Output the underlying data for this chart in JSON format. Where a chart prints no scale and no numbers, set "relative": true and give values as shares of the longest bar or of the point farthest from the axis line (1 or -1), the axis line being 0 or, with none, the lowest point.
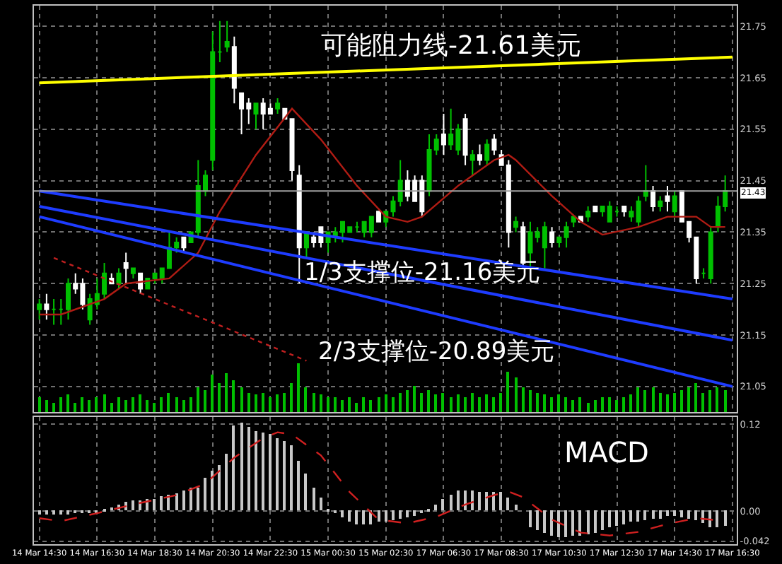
{
  "chart_data": [
    {
      "type": "candlestick",
      "categories": [
        "14 Mar 14:30",
        null,
        null,
        null,
        null,
        null,
        null,
        null,
        "14 Mar 16:30",
        null,
        null,
        null,
        null,
        null,
        null,
        null,
        "14 Mar 18:30",
        null,
        null,
        null,
        null,
        null,
        null,
        null,
        "14 Mar 20:30",
        null,
        null,
        null,
        null,
        null,
        null,
        null,
        "14 Mar 22:30",
        null,
        null,
        null,
        null,
        null,
        null,
        null,
        "15 Mar 00:30",
        null,
        null,
        null,
        null,
        null,
        null,
        null,
        "15 Mar 02:30",
        null,
        null,
        null,
        null,
        null,
        null,
        null,
        "17 Mar 06:30",
        null,
        null,
        null,
        null,
        null,
        null,
        null,
        "17 Mar 08:30",
        null,
        null,
        null,
        null,
        null,
        null,
        null,
        "17 Mar 10:30",
        null,
        null,
        null,
        null,
        null,
        null,
        null,
        "17 Mar 12:30",
        null,
        null,
        null,
        null,
        null,
        null,
        null,
        "17 Mar 14:30",
        null,
        null,
        null,
        null,
        null,
        null,
        null,
        "17 Mar 16:30"
      ],
      "ohlc": [
        [
          21.2,
          21.22,
          21.18,
          21.21
        ],
        [
          21.21,
          21.23,
          21.18,
          21.2
        ],
        [
          21.2,
          21.22,
          21.17,
          21.2
        ],
        [
          21.2,
          21.22,
          21.17,
          21.2
        ],
        [
          21.2,
          21.26,
          21.18,
          21.25
        ],
        [
          21.25,
          21.27,
          21.23,
          21.24
        ],
        [
          21.25,
          21.26,
          21.2,
          21.21
        ],
        [
          21.18,
          21.23,
          21.17,
          21.22
        ],
        [
          21.21,
          21.26,
          21.2,
          21.23
        ],
        [
          21.23,
          21.29,
          21.22,
          21.27
        ],
        [
          21.26,
          21.27,
          21.25,
          21.25
        ],
        [
          21.25,
          21.28,
          21.24,
          21.27
        ],
        [
          21.29,
          21.31,
          21.25,
          21.28
        ],
        [
          21.27,
          21.28,
          21.26,
          21.28
        ],
        [
          21.27,
          21.27,
          21.23,
          21.24
        ],
        [
          21.24,
          21.26,
          21.24,
          21.26
        ],
        [
          21.26,
          21.27,
          21.25,
          21.27
        ],
        [
          21.26,
          21.28,
          21.25,
          21.28
        ],
        [
          21.28,
          21.35,
          21.28,
          21.32
        ],
        [
          21.32,
          21.34,
          21.31,
          21.33
        ],
        [
          21.34,
          21.34,
          21.31,
          21.32
        ],
        [
          21.33,
          21.35,
          21.33,
          21.35
        ],
        [
          21.35,
          21.49,
          21.34,
          21.44
        ],
        [
          21.43,
          21.47,
          21.42,
          21.46
        ],
        [
          21.49,
          21.74,
          21.47,
          21.7
        ],
        [
          21.7,
          21.76,
          21.68,
          21.7
        ],
        [
          21.71,
          21.76,
          21.7,
          21.72
        ],
        [
          21.71,
          21.73,
          21.6,
          21.63
        ],
        [
          21.62,
          21.62,
          21.54,
          21.59
        ],
        [
          21.6,
          21.61,
          21.56,
          21.59
        ],
        [
          21.58,
          21.6,
          21.55,
          21.6
        ],
        [
          21.6,
          21.61,
          21.55,
          21.58
        ],
        [
          21.59,
          21.6,
          21.58,
          21.58
        ],
        [
          21.59,
          21.61,
          21.58,
          21.6
        ],
        [
          21.59,
          21.59,
          21.57,
          21.57
        ],
        [
          21.57,
          21.57,
          21.45,
          21.47
        ],
        [
          21.46,
          21.48,
          21.25,
          21.32
        ],
        [
          21.32,
          21.35,
          21.3,
          21.35
        ],
        [
          21.34,
          21.35,
          21.32,
          21.33
        ],
        [
          21.36,
          21.36,
          21.32,
          21.33
        ],
        [
          21.33,
          21.35,
          21.31,
          21.35
        ],
        [
          21.34,
          21.36,
          21.33,
          21.35
        ],
        [
          21.35,
          21.37,
          21.33,
          21.37
        ],
        [
          21.35,
          21.36,
          21.35,
          21.36
        ],
        [
          21.36,
          21.37,
          21.35,
          21.36
        ],
        [
          21.35,
          21.37,
          21.34,
          21.37
        ],
        [
          21.35,
          21.38,
          21.34,
          21.38
        ],
        [
          21.39,
          21.39,
          21.37,
          21.37
        ],
        [
          21.37,
          21.39,
          21.36,
          21.39
        ],
        [
          21.39,
          21.42,
          21.38,
          21.41
        ],
        [
          21.41,
          21.49,
          21.4,
          21.45
        ],
        [
          21.45,
          21.47,
          21.41,
          21.42
        ],
        [
          21.45,
          21.46,
          21.41,
          21.41
        ],
        [
          21.45,
          21.46,
          21.38,
          21.39
        ],
        [
          21.43,
          21.54,
          21.42,
          21.51
        ],
        [
          21.51,
          21.54,
          21.5,
          21.53
        ],
        [
          21.54,
          21.58,
          21.5,
          21.52
        ],
        [
          21.52,
          21.59,
          21.51,
          21.54
        ],
        [
          21.51,
          21.56,
          21.5,
          21.55
        ],
        [
          21.57,
          21.58,
          21.48,
          21.5
        ],
        [
          21.49,
          21.51,
          21.46,
          21.5
        ],
        [
          21.5,
          21.52,
          21.48,
          21.49
        ],
        [
          21.49,
          21.53,
          21.48,
          21.52
        ],
        [
          21.53,
          21.54,
          21.5,
          21.51
        ],
        [
          21.5,
          21.51,
          21.48,
          21.48
        ],
        [
          21.48,
          21.49,
          21.32,
          21.35
        ],
        [
          21.36,
          21.38,
          21.35,
          21.37
        ],
        [
          21.36,
          21.37,
          21.28,
          21.29
        ],
        [
          21.31,
          21.37,
          21.28,
          21.35
        ],
        [
          21.34,
          21.36,
          21.33,
          21.35
        ],
        [
          21.32,
          21.37,
          21.28,
          21.36
        ],
        [
          21.35,
          21.36,
          21.32,
          21.33
        ],
        [
          21.33,
          21.34,
          21.32,
          21.34
        ],
        [
          21.34,
          21.37,
          21.32,
          21.36
        ],
        [
          21.37,
          21.38,
          21.36,
          21.38
        ],
        [
          21.38,
          21.38,
          21.37,
          21.37
        ],
        [
          21.38,
          21.4,
          21.37,
          21.39
        ],
        [
          21.4,
          21.4,
          21.39,
          21.39
        ],
        [
          21.39,
          21.4,
          21.38,
          21.4
        ],
        [
          21.37,
          21.41,
          21.37,
          21.4
        ],
        [
          21.39,
          21.4,
          21.38,
          21.39
        ],
        [
          21.4,
          21.4,
          21.38,
          21.39
        ],
        [
          21.38,
          21.4,
          21.37,
          21.39
        ],
        [
          21.37,
          21.42,
          21.36,
          21.41
        ],
        [
          21.42,
          21.48,
          21.41,
          21.43
        ],
        [
          21.43,
          21.44,
          21.39,
          21.4
        ],
        [
          21.4,
          21.42,
          21.39,
          21.41
        ],
        [
          21.42,
          21.44,
          21.39,
          21.41
        ],
        [
          21.39,
          21.43,
          21.38,
          21.42
        ],
        [
          21.43,
          21.43,
          21.37,
          21.37
        ],
        [
          21.37,
          21.37,
          21.33,
          21.34
        ],
        [
          21.34,
          21.34,
          21.25,
          21.26
        ],
        [
          21.27,
          21.28,
          21.26,
          21.27
        ],
        [
          21.26,
          21.36,
          21.25,
          21.35
        ],
        [
          21.36,
          21.42,
          21.35,
          21.4
        ],
        [
          21.4,
          21.46,
          21.39,
          21.43
        ],
        null
      ],
      "colors": [
        "#00c000",
        "#ffffff",
        "#00c000",
        "#00c000",
        "#00c000",
        "#ffffff",
        "#ffffff",
        "#00c000",
        "#00c000",
        "#00c000",
        "#ffffff",
        "#00c000",
        "#ffffff",
        "#00c000",
        "#ffffff",
        "#00c000",
        "#00c000",
        "#00c000",
        "#00c000",
        "#00c000",
        "#ffffff",
        "#00c000",
        "#00c000",
        "#00c000",
        "#00c000",
        "#00c000",
        "#00c000",
        "#ffffff",
        "#ffffff",
        "#ffffff",
        "#00c000",
        "#ffffff",
        "#ffffff",
        "#00c000",
        "#ffffff",
        "#ffffff",
        "#ffffff",
        "#00c000",
        "#ffffff",
        "#ffffff",
        "#00c000",
        "#00c000",
        "#00c000",
        "#00c000",
        "#00c000",
        "#00c000",
        "#00c000",
        "#ffffff",
        "#00c000",
        "#00c000",
        "#00c000",
        "#ffffff",
        "#ffffff",
        "#ffffff",
        "#00c000",
        "#00c000",
        "#ffffff",
        "#00c000",
        "#00c000",
        "#ffffff",
        "#00c000",
        "#ffffff",
        "#00c000",
        "#ffffff",
        "#ffffff",
        "#ffffff",
        "#00c000",
        "#ffffff",
        "#00c000",
        "#00c000",
        "#00c000",
        "#ffffff",
        "#00c000",
        "#00c000",
        "#00c000",
        "#ffffff",
        "#00c000",
        "#ffffff",
        "#00c000",
        "#00c000",
        "#00c000",
        "#ffffff",
        "#00c000",
        "#00c000",
        "#00c000",
        "#ffffff",
        "#00c000",
        "#ffffff",
        "#00c000",
        "#ffffff",
        "#ffffff",
        "#ffffff",
        "#00c000",
        "#00c000",
        "#00c000",
        "#00c000",
        null
      ],
      "series": [
        {
          "type": "line",
          "color": "#b01c14",
          "values": [
            21.19,
            null,
            null,
            21.19,
            null,
            null,
            null,
            null,
            null,
            21.22,
            null,
            null,
            21.25,
            null,
            null,
            null,
            null,
            null,
            21.26,
            null,
            null,
            null,
            21.31,
            null,
            null,
            21.39,
            null,
            null,
            null,
            null,
            21.5,
            null,
            null,
            null,
            null,
            21.59,
            null,
            null,
            null,
            21.53,
            null,
            null,
            null,
            null,
            21.44,
            null,
            null,
            null,
            21.38,
            null,
            null,
            21.37,
            null,
            21.38,
            null,
            null,
            null,
            null,
            21.44,
            null,
            null,
            null,
            null,
            21.49,
            null,
            21.5,
            21.49,
            null,
            null,
            null,
            null,
            21.42,
            null,
            null,
            null,
            21.37,
            null,
            null,
            21.345,
            null,
            null,
            null,
            null,
            21.36,
            null,
            null,
            null,
            21.38,
            null,
            null,
            null,
            21.38,
            null,
            21.36,
            null,
            21.36,
            null
          ]
        },
        {
          "type": "line",
          "color": "#ffff00",
          "values": [
            21.64,
            null,
            null,
            null,
            null,
            null,
            null,
            null,
            null,
            null,
            null,
            null,
            null,
            null,
            null,
            null,
            null,
            null,
            null,
            null,
            null,
            null,
            null,
            null,
            null,
            null,
            null,
            null,
            null,
            null,
            null,
            null,
            null,
            null,
            null,
            null,
            null,
            null,
            null,
            null,
            null,
            null,
            null,
            null,
            null,
            null,
            null,
            null,
            null,
            null,
            null,
            null,
            null,
            null,
            null,
            null,
            null,
            null,
            null,
            null,
            null,
            null,
            null,
            null,
            null,
            null,
            null,
            null,
            null,
            null,
            null,
            null,
            null,
            null,
            null,
            null,
            null,
            null,
            null,
            null,
            null,
            null,
            null,
            null,
            null,
            null,
            null,
            null,
            null,
            null,
            null,
            null,
            null,
            null,
            null,
            null,
            21.69
          ]
        },
        {
          "type": "line",
          "color": "#1e3cff",
          "values": [
            21.43,
            null,
            null,
            null,
            null,
            null,
            null,
            null,
            null,
            null,
            null,
            null,
            null,
            null,
            null,
            null,
            null,
            null,
            null,
            null,
            null,
            null,
            null,
            null,
            null,
            null,
            null,
            null,
            null,
            null,
            null,
            null,
            null,
            null,
            null,
            null,
            null,
            null,
            null,
            null,
            null,
            null,
            null,
            null,
            null,
            null,
            null,
            null,
            null,
            null,
            null,
            null,
            null,
            null,
            null,
            null,
            null,
            null,
            null,
            null,
            null,
            null,
            null,
            null,
            null,
            null,
            null,
            null,
            null,
            null,
            null,
            null,
            null,
            null,
            null,
            null,
            null,
            null,
            null,
            null,
            null,
            null,
            null,
            null,
            null,
            null,
            null,
            null,
            null,
            null,
            null,
            null,
            null,
            null,
            null,
            null,
            21.22
          ]
        },
        {
          "type": "line",
          "color": "#1e3cff",
          "values": [
            21.4,
            null,
            null,
            null,
            null,
            null,
            null,
            null,
            null,
            null,
            null,
            null,
            null,
            null,
            null,
            null,
            null,
            null,
            null,
            null,
            null,
            null,
            null,
            null,
            null,
            null,
            null,
            null,
            null,
            null,
            null,
            null,
            null,
            null,
            null,
            null,
            null,
            null,
            null,
            null,
            null,
            null,
            null,
            null,
            null,
            null,
            null,
            null,
            null,
            null,
            null,
            null,
            null,
            null,
            null,
            null,
            null,
            null,
            null,
            null,
            null,
            null,
            null,
            null,
            null,
            null,
            null,
            null,
            null,
            null,
            null,
            null,
            null,
            null,
            null,
            null,
            null,
            null,
            null,
            null,
            null,
            null,
            null,
            null,
            null,
            null,
            null,
            null,
            null,
            null,
            null,
            null,
            null,
            null,
            null,
            null,
            21.14
          ]
        },
        {
          "type": "line",
          "color": "#1e3cff",
          "values": [
            21.38,
            null,
            null,
            null,
            null,
            null,
            null,
            null,
            null,
            null,
            null,
            null,
            null,
            null,
            null,
            null,
            null,
            null,
            null,
            null,
            null,
            null,
            null,
            null,
            null,
            null,
            null,
            null,
            null,
            null,
            null,
            null,
            null,
            null,
            null,
            null,
            null,
            null,
            null,
            null,
            null,
            null,
            null,
            null,
            null,
            null,
            null,
            null,
            null,
            null,
            null,
            null,
            null,
            null,
            null,
            null,
            null,
            null,
            null,
            null,
            null,
            null,
            null,
            null,
            null,
            null,
            null,
            null,
            null,
            null,
            null,
            null,
            null,
            null,
            null,
            null,
            null,
            null,
            null,
            null,
            null,
            null,
            null,
            null,
            null,
            null,
            null,
            null,
            null,
            null,
            null,
            null,
            null,
            null,
            null,
            null,
            21.05
          ]
        },
        {
          "type": "line",
          "color": "#c02020",
          "line_style": "dotted",
          "values": [
            null,
            null,
            21.3,
            null,
            null,
            null,
            null,
            null,
            null,
            null,
            null,
            null,
            null,
            null,
            null,
            null,
            null,
            null,
            null,
            null,
            null,
            null,
            null,
            null,
            null,
            null,
            null,
            null,
            null,
            null,
            null,
            null,
            null,
            null,
            null,
            null,
            null,
            21.1,
            null,
            null,
            null,
            null,
            null,
            null,
            null,
            null,
            null,
            null,
            null,
            null,
            null,
            null,
            null,
            null,
            null,
            null,
            null,
            null,
            null,
            null,
            null,
            null,
            null,
            null,
            null,
            null,
            null,
            null,
            null,
            null,
            null,
            null,
            null,
            null,
            null,
            null,
            null,
            null,
            null,
            null,
            null,
            null,
            null,
            null,
            null,
            null,
            null,
            null,
            null,
            null,
            null,
            null,
            null,
            null,
            null,
            null,
            null
          ]
        }
      ],
      "ref_lines": [
        {
          "axis": "y",
          "value": 21.43,
          "label": "21.43",
          "color": "#a0a0a0"
        }
      ],
      "annotations": [
        "可能阻力线-21.61美元",
        "1/3支撑位-21.16美元",
        "2/3支撑位-20.89美元"
      ],
      "ylim": [
        21.0,
        21.79
      ],
      "yticks": [
        21.05,
        21.15,
        21.25,
        21.35,
        21.45,
        21.55,
        21.65,
        21.75
      ],
      "tick_labels": "y",
      "grid": true
    },
    {
      "type": "bar",
      "relative": true,
      "color": "#00c000",
      "categories": [
        "14 Mar 14:30",
        null,
        null,
        null,
        null,
        null,
        null,
        null,
        "14 Mar 16:30",
        null,
        null,
        null,
        null,
        null,
        null,
        null,
        "14 Mar 18:30",
        null,
        null,
        null,
        null,
        null,
        null,
        null,
        "14 Mar 20:30",
        null,
        null,
        null,
        null,
        null,
        null,
        null,
        "14 Mar 22:30",
        null,
        null,
        null,
        null,
        null,
        null,
        null,
        "15 Mar 00:30",
        null,
        null,
        null,
        null,
        null,
        null,
        null,
        "15 Mar 02:30",
        null,
        null,
        null,
        null,
        null,
        null,
        null,
        "17 Mar 06:30",
        null,
        null,
        null,
        null,
        null,
        null,
        null,
        "17 Mar 08:30",
        null,
        null,
        null,
        null,
        null,
        null,
        null,
        "17 Mar 10:30",
        null,
        null,
        null,
        null,
        null,
        null,
        null,
        "17 Mar 12:30",
        null,
        null,
        null,
        null,
        null,
        null,
        null,
        "17 Mar 14:30",
        null,
        null,
        null,
        null,
        null,
        null,
        null,
        "17 Mar 16:30"
      ],
      "values": [
        0.3,
        0.25,
        0.2,
        0.3,
        0.35,
        0.2,
        0.3,
        0.25,
        0.3,
        0.35,
        0.2,
        0.3,
        0.25,
        0.3,
        0.35,
        0.25,
        0.2,
        0.3,
        0.4,
        0.3,
        0.25,
        0.3,
        0.5,
        0.45,
        0.77,
        0.6,
        0.8,
        0.65,
        0.5,
        0.4,
        0.35,
        0.4,
        0.3,
        0.35,
        0.4,
        0.6,
        1.0,
        0.5,
        0.4,
        0.35,
        0.3,
        0.3,
        0.25,
        0.3,
        0.2,
        0.3,
        0.25,
        0.3,
        0.35,
        0.3,
        0.4,
        0.45,
        0.54,
        0.4,
        0.45,
        0.35,
        0.4,
        0.3,
        0.35,
        0.3,
        0.4,
        0.3,
        0.35,
        0.3,
        0.4,
        0.83,
        0.7,
        0.5,
        0.45,
        0.4,
        0.35,
        0.3,
        0.35,
        0.3,
        0.25,
        0.3,
        0.2,
        0.25,
        0.3,
        0.3,
        0.25,
        0.3,
        0.35,
        0.5,
        0.45,
        0.5,
        0.4,
        0.35,
        0.4,
        0.45,
        0.5,
        0.6,
        0.4,
        0.45,
        0.5,
        0.45,
        null
      ],
      "tick_labels": false
    },
    {
      "type": "bar",
      "color": "#c8c8c8",
      "categories": [
        "14 Mar 14:30",
        null,
        null,
        null,
        null,
        null,
        null,
        null,
        "14 Mar 16:30",
        null,
        null,
        null,
        null,
        null,
        null,
        null,
        "14 Mar 18:30",
        null,
        null,
        null,
        null,
        null,
        null,
        null,
        "14 Mar 20:30",
        null,
        null,
        null,
        null,
        null,
        null,
        null,
        "14 Mar 22:30",
        null,
        null,
        null,
        null,
        null,
        null,
        null,
        "15 Mar 00:30",
        null,
        null,
        null,
        null,
        null,
        null,
        null,
        "15 Mar 02:30",
        null,
        null,
        null,
        null,
        null,
        null,
        null,
        "17 Mar 06:30",
        null,
        null,
        null,
        null,
        null,
        null,
        null,
        "17 Mar 08:30",
        null,
        null,
        null,
        null,
        null,
        null,
        null,
        "17 Mar 10:30",
        null,
        null,
        null,
        null,
        null,
        null,
        null,
        "17 Mar 12:30",
        null,
        null,
        null,
        null,
        null,
        null,
        null,
        "17 Mar 14:30",
        null,
        null,
        null,
        null,
        null,
        null,
        null,
        "17 Mar 16:30"
      ],
      "values": [
        -0.005,
        -0.006,
        -0.006,
        -0.005,
        -0.005,
        -0.004,
        -0.004,
        -0.003,
        -0.002,
        0.002,
        0.005,
        0.008,
        0.012,
        0.015,
        0.015,
        0.016,
        0.017,
        0.02,
        0.022,
        0.025,
        0.028,
        0.032,
        0.033,
        0.045,
        0.055,
        0.063,
        0.08,
        0.118,
        0.123,
        0.116,
        0.111,
        0.109,
        0.106,
        0.101,
        0.097,
        0.091,
        0.07,
        0.052,
        0.033,
        0.019,
        0.001,
        -0.003,
        -0.008,
        -0.015,
        -0.018,
        -0.018,
        -0.018,
        -0.015,
        -0.014,
        -0.012,
        -0.01,
        -0.008,
        -0.007,
        -0.003,
        0.002,
        0.009,
        0.016,
        0.022,
        0.028,
        0.028,
        0.028,
        0.026,
        0.026,
        0.027,
        0.026,
        0.019,
        0.009,
        0.0,
        -0.022,
        -0.027,
        -0.03,
        -0.034,
        -0.037,
        -0.037,
        -0.035,
        -0.034,
        -0.032,
        -0.03,
        -0.027,
        -0.023,
        -0.02,
        -0.018,
        -0.015,
        -0.014,
        -0.012,
        -0.01,
        -0.01,
        -0.007,
        -0.007,
        -0.008,
        -0.01,
        -0.012,
        -0.016,
        -0.023,
        -0.023,
        -0.02,
        null
      ],
      "series": [
        {
          "type": "line",
          "color": "#d02020",
          "line_style": "dashed",
          "values": [
            -0.01,
            null,
            null,
            -0.014,
            null,
            null,
            null,
            null,
            -0.003,
            null,
            null,
            null,
            null,
            0.009,
            null,
            null,
            null,
            null,
            null,
            0.022,
            null,
            null,
            null,
            0.038,
            null,
            null,
            null,
            0.074,
            null,
            null,
            null,
            0.101,
            null,
            0.109,
            null,
            0.106,
            null,
            null,
            null,
            0.077,
            null,
            null,
            null,
            0.026,
            null,
            null,
            null,
            -0.012,
            null,
            null,
            null,
            -0.017,
            null,
            null,
            null,
            -0.008,
            null,
            null,
            null,
            0.009,
            null,
            null,
            null,
            0.022,
            null,
            0.027,
            null,
            0.019,
            null,
            null,
            null,
            -0.012,
            null,
            null,
            null,
            -0.03,
            null,
            null,
            null,
            -0.034,
            null,
            null,
            null,
            -0.029,
            null,
            null,
            null,
            -0.018,
            null,
            null,
            null,
            -0.01,
            null,
            null,
            null,
            -0.014,
            null
          ]
        }
      ],
      "annotations": [
        "MACD"
      ],
      "ylim": [
        -0.046,
        0.13
      ],
      "yticks": [
        0.12,
        {
          "value": 0,
          "label": "0.00"
        },
        -0.042
      ],
      "grid": true
    }
  ]
}
